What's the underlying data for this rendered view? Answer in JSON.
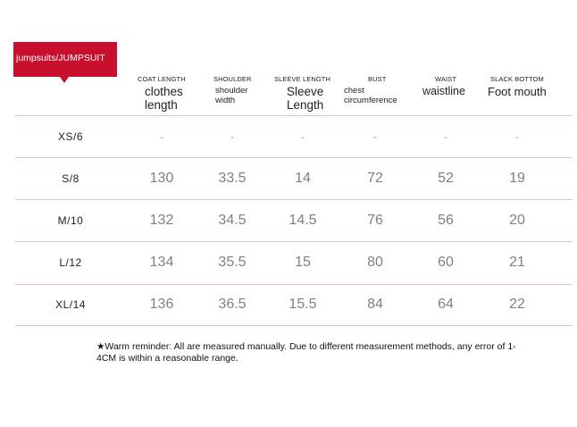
{
  "badge": {
    "label": "jumpsuits/JUMPSUIT"
  },
  "columns": [
    {
      "en": "COAT LENGTH",
      "local": "clothes length"
    },
    {
      "en": "SHOULDER",
      "local": "shoulder width"
    },
    {
      "en": "SLEEVE LENGTH",
      "local": "Sleeve Length"
    },
    {
      "en": "BUST",
      "local": "chest circumference"
    },
    {
      "en": "WAIST",
      "local": "waistline"
    },
    {
      "en": "SLACK BOTTOM",
      "local": "Foot mouth"
    }
  ],
  "rows": [
    {
      "size": "XS/6",
      "values": [
        "-",
        "-",
        "-",
        "-",
        "-",
        "-"
      ]
    },
    {
      "size": "S/8",
      "values": [
        "130",
        "33.5",
        "14",
        "72",
        "52",
        "19"
      ]
    },
    {
      "size": "M/10",
      "values": [
        "132",
        "34.5",
        "14.5",
        "76",
        "56",
        "20"
      ]
    },
    {
      "size": "L/12",
      "values": [
        "134",
        "35.5",
        "15",
        "80",
        "60",
        "21"
      ]
    },
    {
      "size": "XL/14",
      "values": [
        "136",
        "36.5",
        "15.5",
        "84",
        "64",
        "22"
      ]
    }
  ],
  "note": {
    "star": "★",
    "text": "Warm reminder: All are measured manually. Due to different measurement methods, any error of 1-4CM is within a reasonable range."
  }
}
